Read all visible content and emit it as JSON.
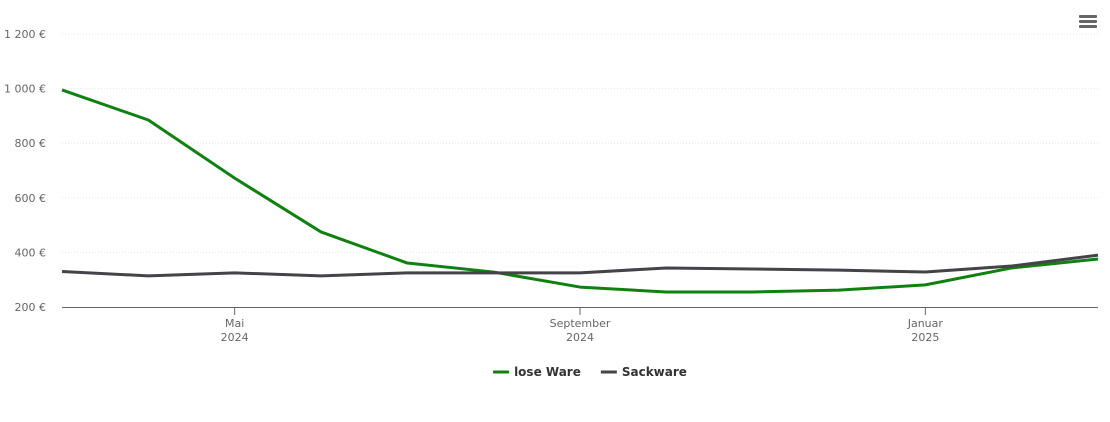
{
  "chart_data": {
    "type": "line",
    "x": [
      "2024-03",
      "2024-04",
      "2024-05",
      "2024-06",
      "2024-07",
      "2024-08",
      "2024-09",
      "2024-10",
      "2024-11",
      "2024-12",
      "2025-01",
      "2025-02",
      "2025-03"
    ],
    "xlim": [
      "2024-03",
      "2025-03"
    ],
    "xticks": [
      {
        "value": "2024-05",
        "label": "Mai 2024"
      },
      {
        "value": "2024-09",
        "label": "September 2024"
      },
      {
        "value": "2025-01",
        "label": "Januar 2025"
      }
    ],
    "ylim": [
      200,
      1200
    ],
    "yticks": [
      {
        "value": 200,
        "label": "200 €"
      },
      {
        "value": 400,
        "label": "400 €"
      },
      {
        "value": 600,
        "label": "600 €"
      },
      {
        "value": 800,
        "label": "800 €"
      },
      {
        "value": 1000,
        "label": "1 000 €"
      },
      {
        "value": 1200,
        "label": "1 200 €"
      }
    ],
    "grid": true,
    "legend": "bottom",
    "series": [
      {
        "name": "lose Ware",
        "color": "#108010",
        "values": [
          995,
          885,
          672,
          475,
          361,
          328,
          273,
          255,
          255,
          262,
          281,
          343,
          376
        ]
      },
      {
        "name": "Sackware",
        "color": "#434348",
        "values": [
          330,
          314,
          325,
          314,
          325,
          325,
          325,
          343,
          339,
          335,
          328,
          350,
          390
        ]
      }
    ]
  }
}
